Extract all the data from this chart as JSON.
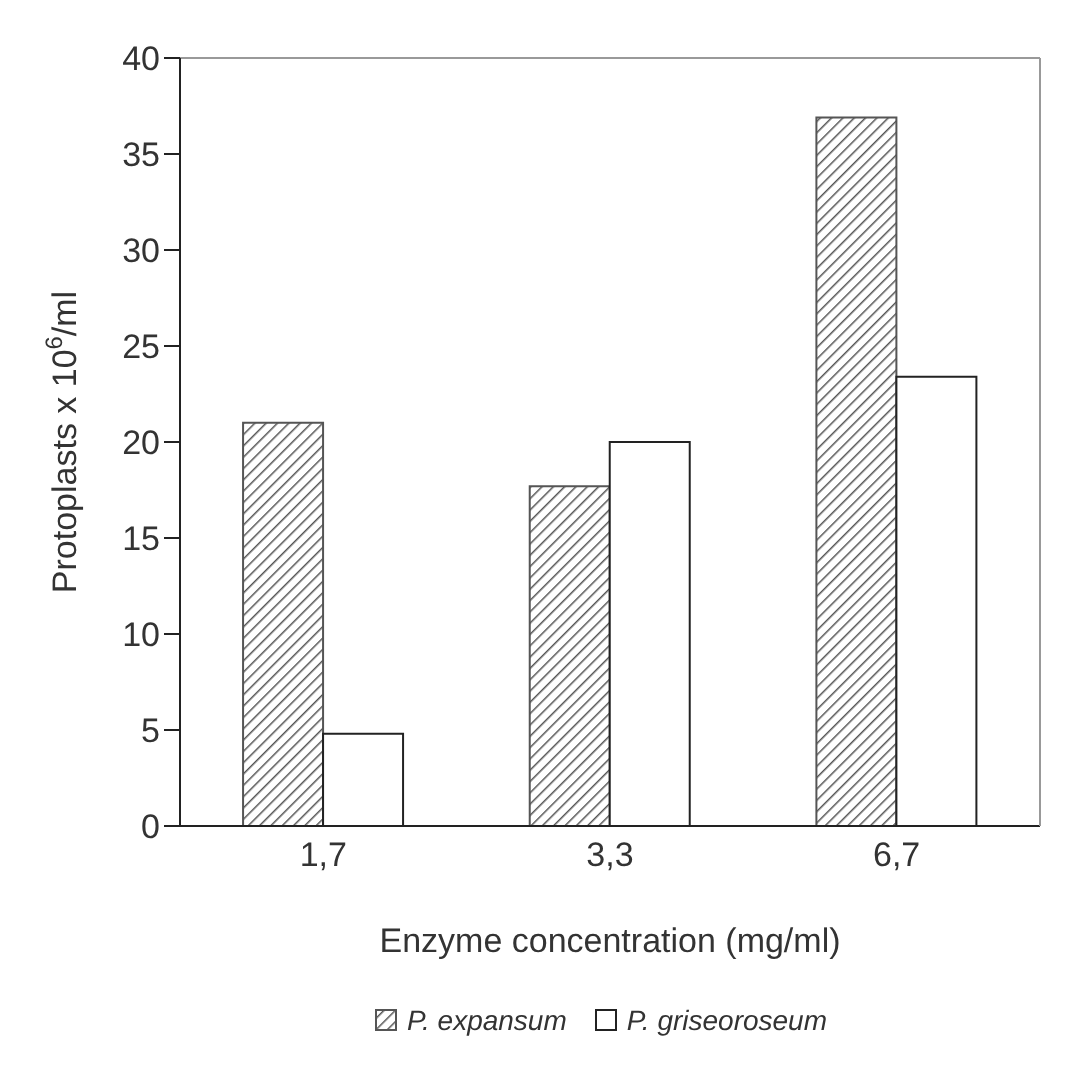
{
  "chart_data": {
    "type": "bar",
    "xlabel": "Enzyme concentration (mg/ml)",
    "ylabel": "Protoplasts x 10$^{6}$/ml",
    "categories": [
      "1,7",
      "3,3",
      "6,7"
    ],
    "series": [
      {
        "name": "P. expansum",
        "color": "#555555",
        "values": [
          21,
          17.7,
          36.9
        ]
      },
      {
        "name": "P. griseoroseum",
        "color": "#ffffff",
        "values": [
          4.8,
          20,
          23.4
        ]
      }
    ],
    "ylim": [
      0,
      40
    ],
    "yticks": [
      0,
      5,
      10,
      15,
      20,
      25,
      30,
      35,
      40
    ],
    "legend": "bottom",
    "grid": false
  }
}
